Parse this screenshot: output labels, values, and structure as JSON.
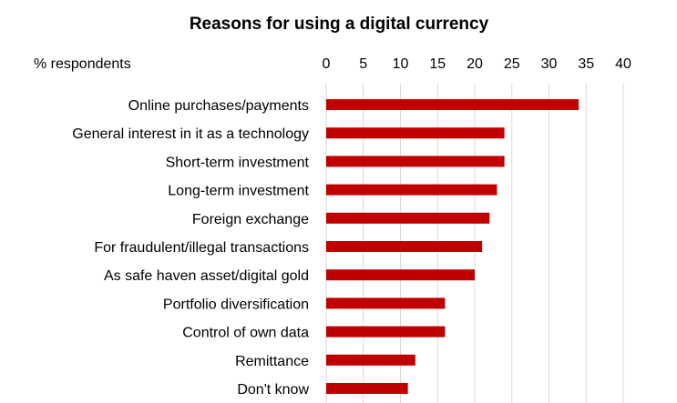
{
  "chart_data": {
    "type": "bar",
    "orientation": "horizontal",
    "title": "Reasons for using a digital currency",
    "unit_label": "% respondents",
    "xlim": [
      0,
      40
    ],
    "ticks": [
      0,
      5,
      10,
      15,
      20,
      25,
      30,
      35,
      40
    ],
    "x_axis_position": "top",
    "grid": true,
    "legend": "none",
    "bar_color": "#C00000",
    "grid_color": "#D9D9D9",
    "categories": [
      "Online purchases/payments",
      "General interest in it as a technology",
      "Short-term investment",
      "Long-term investment",
      "Foreign exchange",
      "For fraudulent/illegal transactions",
      "As safe haven asset/digital gold",
      "Portfolio diversification",
      "Control of own data",
      "Remittance",
      "Don't know"
    ],
    "values": [
      34,
      24,
      24,
      23,
      22,
      21,
      20,
      16,
      16,
      12,
      11
    ]
  }
}
